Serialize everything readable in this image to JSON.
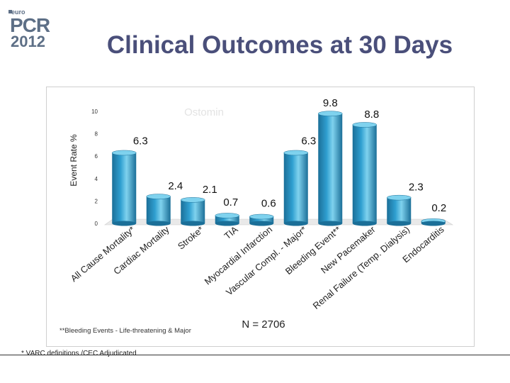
{
  "logo": {
    "small": "euro",
    "brand": "PCR",
    "year": "2012"
  },
  "slide": {
    "title": "Clinical Outcomes at 30 Days"
  },
  "footnote": "* VARC definitions /CEC Adjudicated",
  "colors": {
    "bar": "#2f9fd0",
    "bar_light": "#7fd2ee",
    "bar_dark": "#1b6f98",
    "title": "#4a4f7a",
    "logo": "#5d6f86"
  },
  "chart_data": {
    "type": "bar",
    "title": "Ostomin",
    "ylabel": "Event Rate %",
    "xlabel": "",
    "ylim": [
      0,
      10
    ],
    "yticks": [
      0,
      2,
      4,
      6,
      8,
      10
    ],
    "categories": [
      "All Cause Mortality*",
      "Cardiac Mortality",
      "Stroke*",
      "TIA",
      "Myocardial Infarction",
      "Vascular Compl. - Major*",
      "Bleeding Event**",
      "New Pacemaker",
      "Renal Failure (Temp. Dialysis)",
      "Endocarditis"
    ],
    "values": [
      6.3,
      2.4,
      2.1,
      0.7,
      0.6,
      6.3,
      9.8,
      8.8,
      2.3,
      0.2
    ],
    "value_labels": [
      "6.3",
      "2.4",
      "2.1",
      "0.7",
      "0.6",
      "6.3",
      "9.8",
      "8.8",
      "2.3",
      "0.2"
    ],
    "annotations": {
      "n": "N = 2706",
      "note": "**Bleeding Events - Life-threatening & Major"
    }
  }
}
